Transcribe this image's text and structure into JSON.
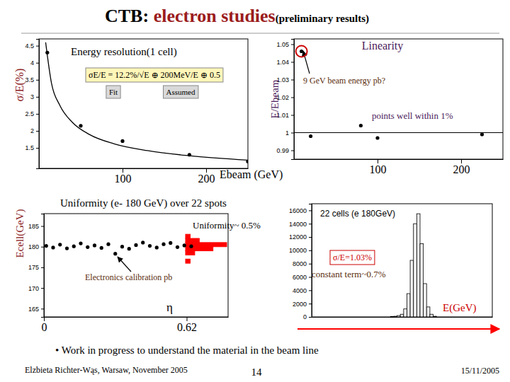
{
  "header": {
    "title": "CTB:",
    "highlight": "electron studies",
    "subtitle": "(preliminary results)"
  },
  "chart_data": [
    {
      "type": "scatter",
      "title": "Energy resolution(1 cell)",
      "y_label": "σ/E(%)",
      "x_label": "Ebeam (GeV)",
      "xlim": [
        0,
        250
      ],
      "xticks": [
        100,
        200
      ],
      "ylim": [
        0.9,
        4.7
      ],
      "yticks": [
        1.5,
        2,
        2.5,
        3,
        3.5,
        4,
        4.5
      ],
      "series": [
        {
          "type": "scatter",
          "color": "#000000",
          "marker": "circle",
          "x": [
            10,
            50,
            100,
            180,
            250
          ],
          "values": [
            4.3,
            2.15,
            1.7,
            1.3,
            1.1
          ]
        },
        {
          "type": "line",
          "color": "#000000",
          "line_style": "solid",
          "x": [
            8,
            15,
            25,
            40,
            60,
            90,
            130,
            180,
            250
          ],
          "values": [
            4.6,
            3.4,
            2.75,
            2.25,
            1.9,
            1.62,
            1.42,
            1.27,
            1.14
          ]
        }
      ],
      "annotations": [
        "σE/E = 12.2%/√E ⊕ 200MeV/E ⊕ 0.5",
        "Fit",
        "Assumed"
      ]
    },
    {
      "type": "scatter",
      "title": "Linearity",
      "y_label": "E/Ebeam",
      "xlim": [
        0,
        250
      ],
      "xticks": [
        100,
        200
      ],
      "ylim": [
        0.985,
        1.053
      ],
      "yticks": [
        0.99,
        1,
        1.01,
        1.02,
        1.03,
        1.04,
        1.05
      ],
      "reference_line": 1,
      "series": [
        {
          "type": "scatter",
          "color": "#000000",
          "marker": "circle",
          "x": [
            9,
            20,
            80,
            100,
            225
          ],
          "values": [
            1.046,
            0.998,
            1.004,
            0.997,
            0.999
          ]
        }
      ],
      "annotations": [
        "9 GeV beam energy pb?",
        "points well within 1%"
      ]
    },
    {
      "type": "scatter",
      "title": "Uniformity (e- 180 GeV) over 22 spots",
      "y_label": "Ecell(GeV)",
      "x_label": "η",
      "xlim": [
        0,
        0.8
      ],
      "xticks": [
        0,
        0.62
      ],
      "ylim": [
        163,
        188
      ],
      "yticks": [
        165,
        170,
        175,
        180,
        185
      ],
      "series": [
        {
          "type": "scatter",
          "color": "#000000",
          "marker": "circle",
          "x": [
            0.01,
            0.04,
            0.07,
            0.1,
            0.13,
            0.16,
            0.19,
            0.22,
            0.25,
            0.28,
            0.31,
            0.34,
            0.37,
            0.4,
            0.43,
            0.46,
            0.49,
            0.52,
            0.55,
            0.58,
            0.61,
            0.64
          ],
          "values": [
            180.2,
            179.8,
            180.5,
            179.6,
            180.1,
            180.8,
            179.9,
            180.3,
            179.7,
            180.6,
            178.3,
            180.0,
            179.5,
            180.4,
            181.0,
            180.2,
            179.8,
            180.6,
            180.9,
            179.9,
            180.3,
            180.1
          ]
        }
      ],
      "projection": {
        "color": "#ff0000",
        "bins": [
          176,
          177,
          178,
          179,
          180,
          181,
          182,
          183
        ],
        "counts": [
          1,
          0,
          2,
          6,
          9,
          3,
          1
        ]
      },
      "annotations": [
        "Uniformity~ 0.5%",
        "Electronics calibration pb"
      ]
    },
    {
      "type": "histogram",
      "title": "22 cells (e 180GeV)",
      "x_label": "E(GeV)",
      "xlim": [
        95,
        150
      ],
      "ylim": [
        0,
        17000
      ],
      "yticks": [
        0,
        2000,
        4000,
        6000,
        8000,
        10000,
        12000,
        14000,
        16000
      ],
      "tick_labels": "y",
      "color": "#000000",
      "bins": [
        118,
        119,
        120,
        121,
        122,
        123,
        124,
        125,
        126,
        127,
        128,
        129,
        130,
        131,
        132,
        133,
        134
      ],
      "counts": [
        0,
        50,
        100,
        200,
        400,
        1200,
        3500,
        8500,
        14000,
        15500,
        11000,
        5000,
        1500,
        400,
        100,
        0
      ],
      "annotations": [
        "σ/E=1.03%",
        "constant term~0.7%"
      ]
    }
  ],
  "footer": {
    "note": "• Work in progress to understand the material in the beam line",
    "author": "Elzbieta Richter-Wąs, Warsaw, November 2005",
    "page": 14,
    "date": "15/11/2005"
  }
}
